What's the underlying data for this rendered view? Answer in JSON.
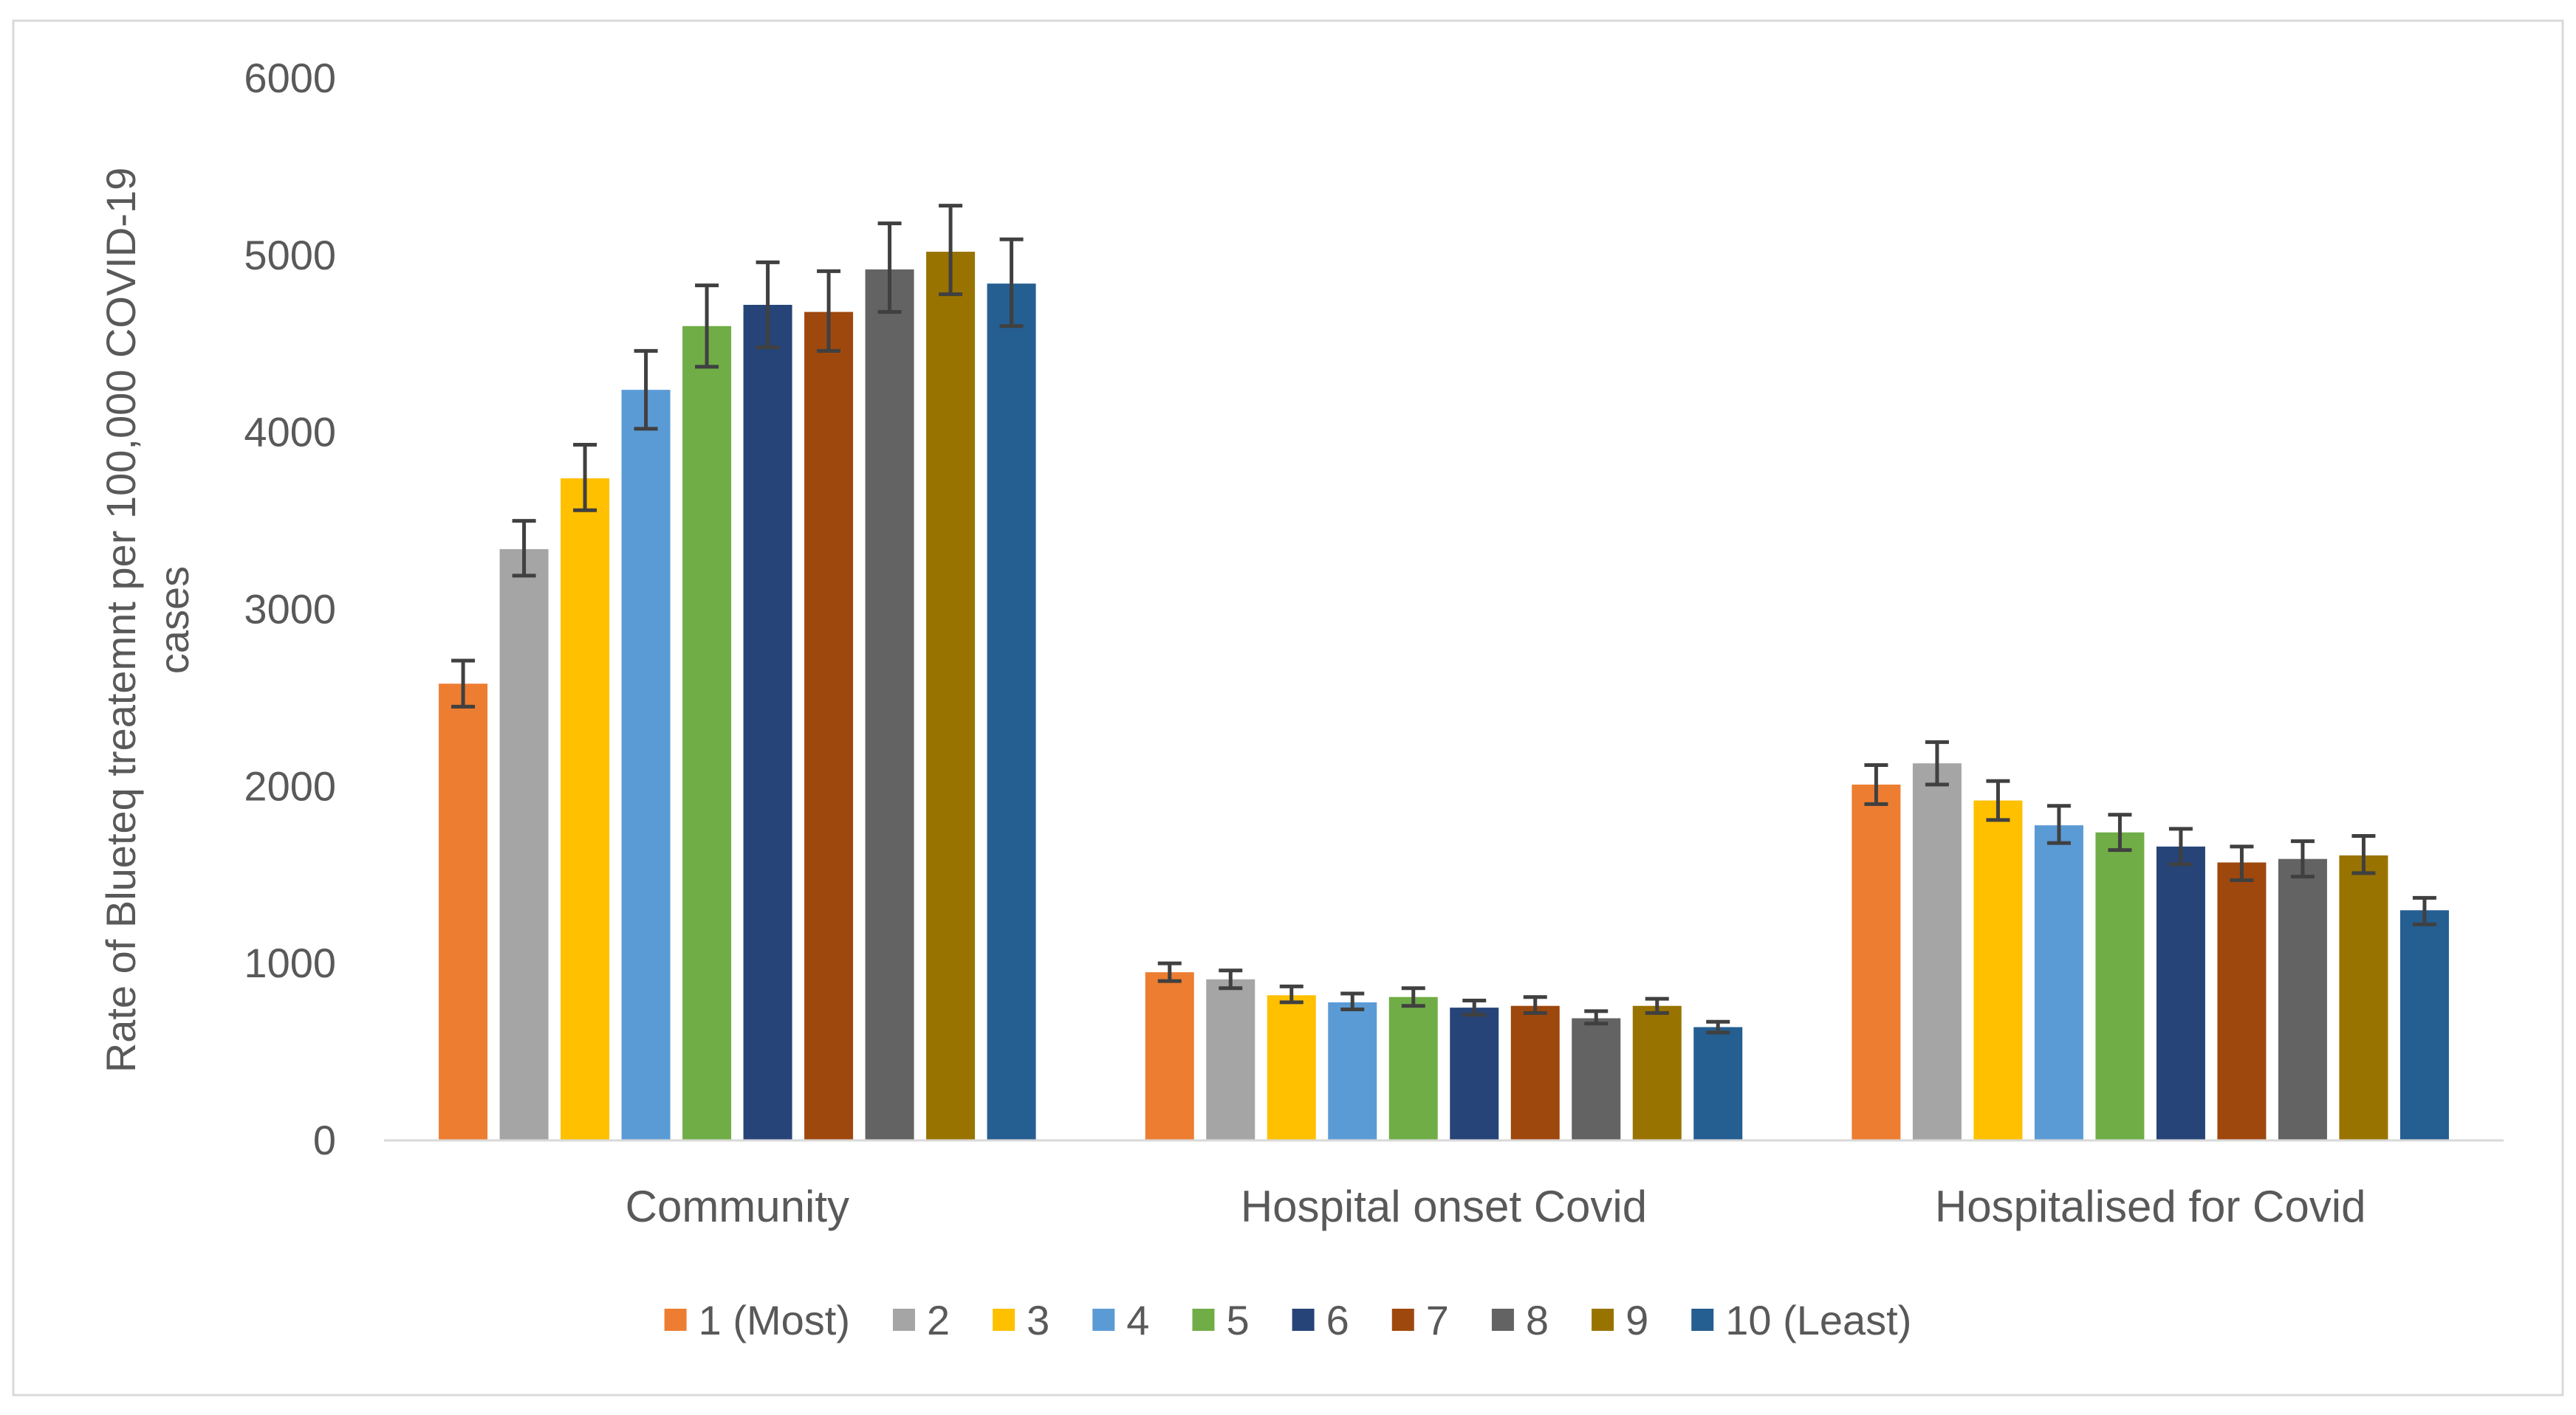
{
  "chart_data": {
    "type": "bar",
    "title": "",
    "xlabel": "",
    "ylabel": "Rate of Blueteq treatemnt per 100,000 COVID-19 cases",
    "ylabel_lines": [
      "Rate of Blueteq treatemnt per 100,000 COVID-19",
      "cases"
    ],
    "ylim": [
      0,
      6000
    ],
    "yticks": [
      0,
      1000,
      2000,
      3000,
      4000,
      5000,
      6000
    ],
    "ytick_labels": [
      "0",
      "1000",
      "2000",
      "3000",
      "4000",
      "5000",
      "6000"
    ],
    "grid": false,
    "legend": "bottom",
    "error_bars": true,
    "categories": [
      "Community",
      "Hospital onset Covid",
      "Hospitalised for Covid"
    ],
    "series": [
      {
        "name": "1 (Most)",
        "color": "#ED7D31",
        "values": [
          2580,
          950,
          2010
        ],
        "err_low": [
          2450,
          900,
          1900
        ],
        "err_high": [
          2710,
          1000,
          2120
        ]
      },
      {
        "name": "2",
        "color": "#A5A5A5",
        "values": [
          3340,
          910,
          2130
        ],
        "err_low": [
          3190,
          860,
          2010
        ],
        "err_high": [
          3500,
          960,
          2250
        ]
      },
      {
        "name": "3",
        "color": "#FFC000",
        "values": [
          3740,
          820,
          1920
        ],
        "err_low": [
          3560,
          780,
          1810
        ],
        "err_high": [
          3930,
          870,
          2030
        ]
      },
      {
        "name": "4",
        "color": "#5B9BD5",
        "values": [
          4240,
          780,
          1780
        ],
        "err_low": [
          4020,
          740,
          1680
        ],
        "err_high": [
          4460,
          830,
          1890
        ]
      },
      {
        "name": "5",
        "color": "#70AD47",
        "values": [
          4600,
          810,
          1740
        ],
        "err_low": [
          4370,
          760,
          1640
        ],
        "err_high": [
          4830,
          860,
          1840
        ]
      },
      {
        "name": "6",
        "color": "#264478",
        "values": [
          4720,
          750,
          1660
        ],
        "err_low": [
          4480,
          710,
          1560
        ],
        "err_high": [
          4960,
          790,
          1760
        ]
      },
      {
        "name": "7",
        "color": "#9E480E",
        "values": [
          4680,
          760,
          1570
        ],
        "err_low": [
          4460,
          720,
          1470
        ],
        "err_high": [
          4910,
          810,
          1660
        ]
      },
      {
        "name": "8",
        "color": "#636363",
        "values": [
          4920,
          690,
          1590
        ],
        "err_low": [
          4680,
          660,
          1490
        ],
        "err_high": [
          5180,
          730,
          1690
        ]
      },
      {
        "name": "9",
        "color": "#997300",
        "values": [
          5020,
          760,
          1610
        ],
        "err_low": [
          4780,
          720,
          1510
        ],
        "err_high": [
          5280,
          800,
          1720
        ]
      },
      {
        "name": "10 (Least)",
        "color": "#255E91",
        "values": [
          4840,
          640,
          1300
        ],
        "err_low": [
          4600,
          610,
          1220
        ],
        "err_high": [
          5090,
          670,
          1370
        ]
      }
    ]
  }
}
